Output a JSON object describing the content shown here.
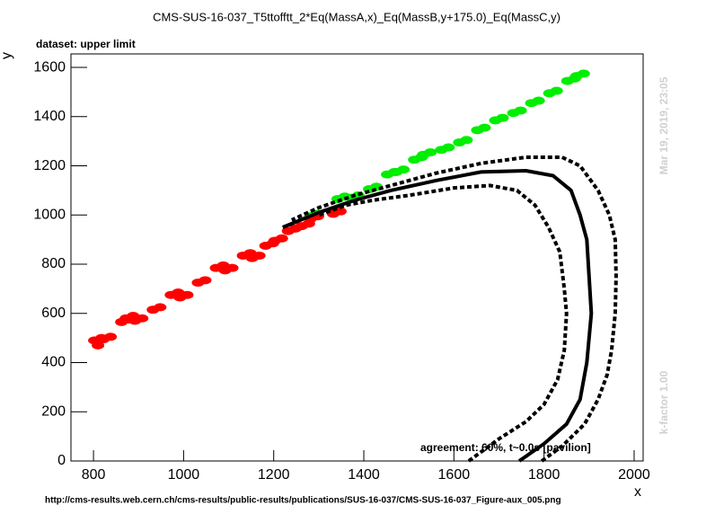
{
  "chart_data": {
    "type": "scatter",
    "title": "CMS-SUS-16-037_T5ttofftt_2*Eq(MassA,x)_Eq(MassB,y+175.0)_Eq(MassC,y)",
    "subtitle": "dataset: upper limit",
    "x_label": "x",
    "y_label": "y",
    "annotation": "agreement: 60%, t~0.0s [pavilion]",
    "timestamp": "Mar 19, 2019, 23:05",
    "kfactor": "k-factor 1.00",
    "footer": "http://cms-results.web.cern.ch/cms-results/public-results/publications/SUS-16-037/CMS-SUS-16-037_Figure-aux_005.png",
    "xlim": [
      750,
      2020
    ],
    "ylim": [
      0,
      1655
    ],
    "xticks": [
      800,
      1000,
      1200,
      1400,
      1600,
      1800,
      2000
    ],
    "yticks": [
      0,
      200,
      400,
      600,
      800,
      1000,
      1200,
      1400,
      1600
    ],
    "series": [
      {
        "color": "#00ee00",
        "mode": "points",
        "x": [
          1282,
          1298,
          1342,
          1358,
          1372,
          1388,
          1412,
          1428,
          1452,
          1468,
          1472,
          1488,
          1512,
          1528,
          1532,
          1548,
          1572,
          1588,
          1612,
          1628,
          1652,
          1668,
          1692,
          1708,
          1732,
          1748,
          1772,
          1788,
          1812,
          1828,
          1852,
          1868,
          1872,
          1888
        ],
        "y": [
          995,
          1005,
          1065,
          1075,
          1070,
          1080,
          1105,
          1115,
          1165,
          1175,
          1175,
          1185,
          1225,
          1235,
          1245,
          1255,
          1265,
          1275,
          1295,
          1305,
          1345,
          1355,
          1385,
          1395,
          1415,
          1425,
          1455,
          1465,
          1495,
          1505,
          1545,
          1555,
          1565,
          1575
        ]
      },
      {
        "color": "#ff0000",
        "mode": "points",
        "x": [
          802,
          818,
          822,
          838,
          862,
          878,
          872,
          888,
          892,
          908,
          932,
          948,
          972,
          988,
          992,
          1008,
          1032,
          1048,
          1072,
          1088,
          1092,
          1108,
          1132,
          1148,
          1152,
          1168,
          1182,
          1198,
          1202,
          1218,
          1232,
          1248,
          1262,
          1278,
          1282,
          1298,
          1332,
          1348,
          810
        ],
        "y": [
          490,
          500,
          495,
          505,
          565,
          575,
          580,
          590,
          570,
          580,
          615,
          625,
          675,
          685,
          665,
          675,
          725,
          735,
          785,
          795,
          775,
          785,
          835,
          845,
          825,
          835,
          875,
          885,
          895,
          905,
          935,
          945,
          955,
          965,
          985,
          995,
          1005,
          1015,
          470
        ]
      },
      {
        "color": "#000000",
        "mode": "line",
        "dash": "5 3",
        "x": [
          1633,
          1700,
          1760,
          1800,
          1830,
          1845,
          1850,
          1845,
          1835,
          1810,
          1780,
          1740,
          1680,
          1600,
          1500,
          1420,
          1360,
          1300
        ],
        "y": [
          0,
          90,
          160,
          230,
          330,
          450,
          600,
          700,
          850,
          950,
          1040,
          1100,
          1120,
          1110,
          1080,
          1060,
          1040,
          1000
        ]
      },
      {
        "color": "#000000",
        "mode": "line",
        "dash": "none",
        "x": [
          1745,
          1800,
          1850,
          1880,
          1895,
          1900,
          1905,
          1900,
          1895,
          1880,
          1860,
          1820,
          1760,
          1660,
          1560,
          1460,
          1380,
          1300,
          1220
        ],
        "y": [
          0,
          70,
          150,
          250,
          400,
          500,
          600,
          750,
          900,
          1000,
          1100,
          1160,
          1180,
          1175,
          1140,
          1100,
          1060,
          1010,
          950
        ]
      },
      {
        "color": "#000000",
        "mode": "line",
        "dash": "5 3",
        "x": [
          1795,
          1840,
          1890,
          1920,
          1940,
          1950,
          1958,
          1960,
          1958,
          1945,
          1920,
          1880,
          1840,
          1760,
          1660,
          1560,
          1460,
          1380,
          1300,
          1240
        ],
        "y": [
          0,
          60,
          150,
          250,
          350,
          450,
          600,
          750,
          900,
          1000,
          1100,
          1200,
          1235,
          1235,
          1210,
          1170,
          1120,
          1080,
          1030,
          980
        ]
      }
    ]
  }
}
